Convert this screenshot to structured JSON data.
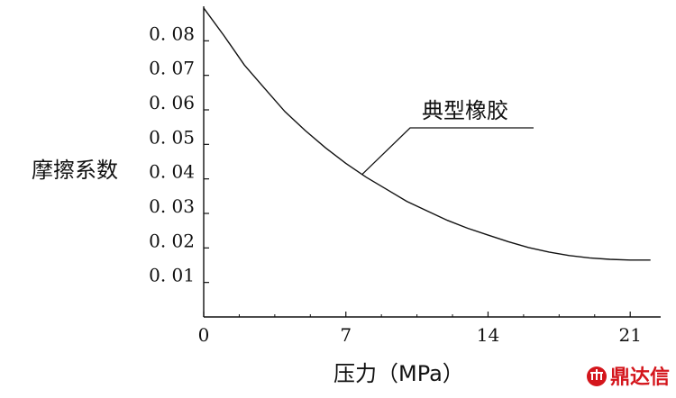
{
  "chart_data": {
    "type": "line",
    "xlabel": "压力（MPa）",
    "ylabel": "摩擦系数",
    "xlim": [
      0,
      22.5
    ],
    "ylim": [
      0,
      0.09
    ],
    "x_ticks": [
      0,
      7,
      14,
      21
    ],
    "x_tick_labels": [
      "0",
      "7",
      "14",
      "21"
    ],
    "y_ticks": [
      0.01,
      0.02,
      0.03,
      0.04,
      0.05,
      0.06,
      0.07,
      0.08
    ],
    "y_tick_labels": [
      "0. 01",
      "0. 02",
      "0. 03",
      "0. 04",
      "0. 05",
      "0. 06",
      "0. 07",
      "0. 08"
    ],
    "grid": false,
    "series": [
      {
        "name": "典型橡胶",
        "x": [
          0,
          1,
          2,
          3,
          4,
          5,
          6,
          7,
          8,
          9,
          10,
          11,
          12,
          13,
          14,
          15,
          16,
          17,
          18,
          19,
          20,
          21,
          22
        ],
        "y": [
          0.0895,
          0.0815,
          0.073,
          0.0662,
          0.0595,
          0.054,
          0.049,
          0.0445,
          0.0405,
          0.037,
          0.0335,
          0.0307,
          0.028,
          0.0257,
          0.0237,
          0.0218,
          0.0201,
          0.0188,
          0.0178,
          0.0171,
          0.0167,
          0.0165,
          0.0165
        ]
      }
    ],
    "annotation": {
      "text": "典型橡胶",
      "points_to_x": 7.8
    }
  },
  "watermark": {
    "text": "鼎达信",
    "color": "#d4161c"
  }
}
